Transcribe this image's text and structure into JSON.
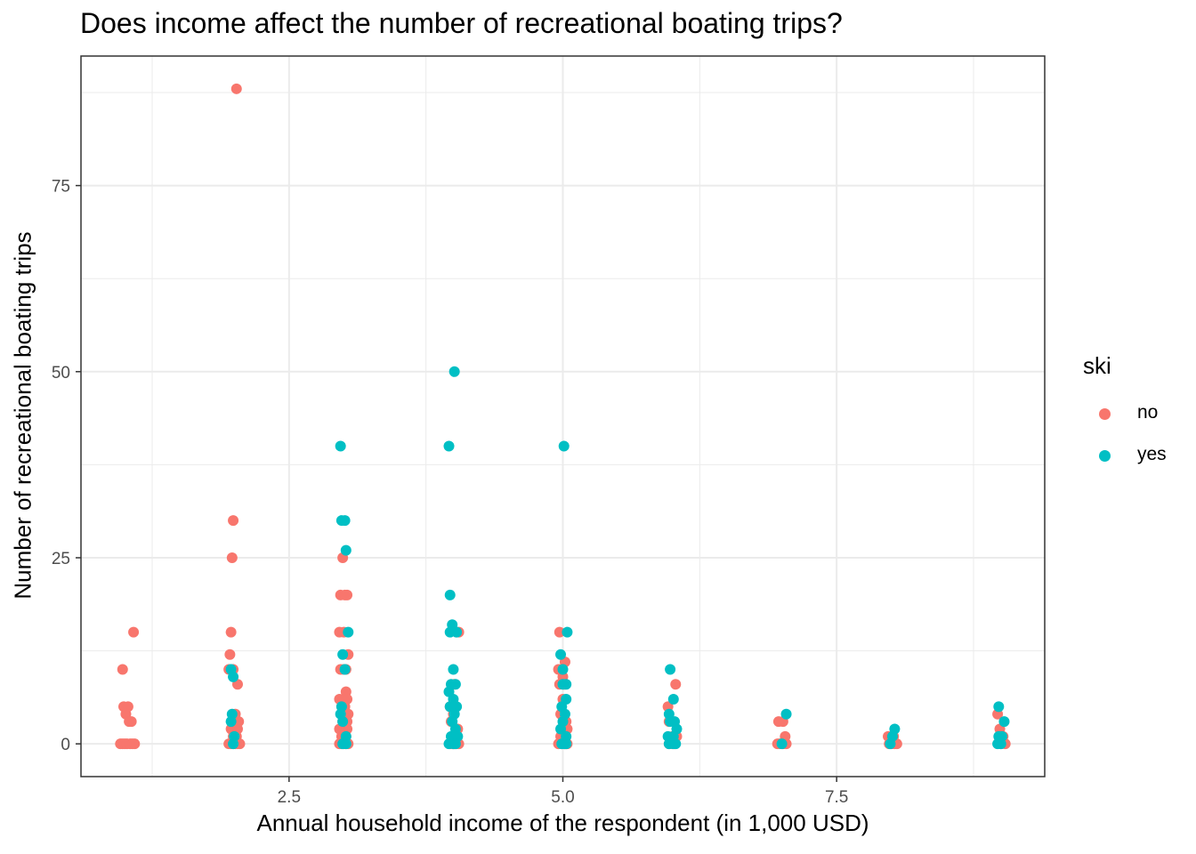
{
  "chart_data": {
    "type": "scatter",
    "title": "Does income affect the number of recreational boating trips?",
    "xlabel": "Annual household income of the respondent (in 1,000 USD)",
    "ylabel": "Number of recreational boating trips",
    "xlim": [
      0.6,
      9.4
    ],
    "ylim": [
      -4.4,
      92.4
    ],
    "x_ticks": [
      2.5,
      5.0,
      7.5
    ],
    "x_tick_labels": [
      "2.5",
      "5.0",
      "7.5"
    ],
    "y_ticks": [
      0,
      25,
      50,
      75
    ],
    "y_tick_labels": [
      "0",
      "25",
      "50",
      "75"
    ],
    "grid": true,
    "legend": {
      "title": "ski",
      "placement": "right",
      "entries": [
        {
          "label": "no",
          "color": "#F8766D"
        },
        {
          "label": "yes",
          "color": "#00BFC4"
        }
      ]
    },
    "series": [
      {
        "name": "no",
        "color": "#F8766D",
        "points": [
          [
            0.96,
            0
          ],
          [
            0.98,
            0
          ],
          [
            1.0,
            0
          ],
          [
            1.02,
            0
          ],
          [
            1.05,
            0
          ],
          [
            1.07,
            0
          ],
          [
            1.09,
            0
          ],
          [
            0.98,
            10
          ],
          [
            0.99,
            5
          ],
          [
            1.03,
            5
          ],
          [
            1.01,
            4
          ],
          [
            1.04,
            3
          ],
          [
            1.06,
            3
          ],
          [
            1.08,
            15
          ],
          [
            2.02,
            88
          ],
          [
            1.99,
            30
          ],
          [
            1.98,
            25
          ],
          [
            1.97,
            15
          ],
          [
            1.96,
            12
          ],
          [
            1.95,
            10
          ],
          [
            1.99,
            10
          ],
          [
            2.03,
            8
          ],
          [
            2.01,
            4
          ],
          [
            2.04,
            3
          ],
          [
            1.97,
            2
          ],
          [
            2.01,
            2
          ],
          [
            2.03,
            2
          ],
          [
            1.99,
            1
          ],
          [
            2.02,
            1
          ],
          [
            1.95,
            0
          ],
          [
            1.97,
            0
          ],
          [
            1.99,
            0
          ],
          [
            2.01,
            0
          ],
          [
            2.03,
            0
          ],
          [
            2.05,
            0
          ],
          [
            2.99,
            25
          ],
          [
            2.97,
            20
          ],
          [
            3.01,
            20
          ],
          [
            3.03,
            20
          ],
          [
            2.96,
            15
          ],
          [
            3.0,
            15
          ],
          [
            3.04,
            12
          ],
          [
            2.97,
            10
          ],
          [
            3.0,
            10
          ],
          [
            3.02,
            10
          ],
          [
            3.02,
            7
          ],
          [
            2.96,
            6
          ],
          [
            3.0,
            6
          ],
          [
            3.03,
            6
          ],
          [
            2.98,
            5
          ],
          [
            3.01,
            5
          ],
          [
            3.04,
            4
          ],
          [
            2.99,
            3
          ],
          [
            3.03,
            3
          ],
          [
            2.96,
            2
          ],
          [
            3.0,
            2
          ],
          [
            3.03,
            2
          ],
          [
            2.98,
            1
          ],
          [
            3.02,
            1
          ],
          [
            2.96,
            0
          ],
          [
            2.98,
            0
          ],
          [
            3.0,
            0
          ],
          [
            3.02,
            0
          ],
          [
            3.04,
            0
          ],
          [
            4.03,
            15
          ],
          [
            4.05,
            15
          ],
          [
            4.01,
            8
          ],
          [
            3.97,
            5
          ],
          [
            4.0,
            4
          ],
          [
            3.98,
            3
          ],
          [
            4.04,
            2
          ],
          [
            3.99,
            1
          ],
          [
            3.97,
            0
          ],
          [
            3.99,
            0
          ],
          [
            4.01,
            0
          ],
          [
            4.03,
            0
          ],
          [
            4.05,
            0
          ],
          [
            4.97,
            15
          ],
          [
            4.96,
            10
          ],
          [
            5.02,
            11
          ],
          [
            5.0,
            9
          ],
          [
            4.97,
            8
          ],
          [
            5.01,
            8
          ],
          [
            5.0,
            6
          ],
          [
            4.98,
            4
          ],
          [
            5.03,
            3
          ],
          [
            5.04,
            2
          ],
          [
            4.98,
            1
          ],
          [
            5.02,
            1
          ],
          [
            4.96,
            0
          ],
          [
            4.99,
            0
          ],
          [
            5.02,
            0
          ],
          [
            5.04,
            0
          ],
          [
            6.03,
            8
          ],
          [
            5.96,
            5
          ],
          [
            5.97,
            3
          ],
          [
            6.0,
            1
          ],
          [
            6.04,
            1
          ],
          [
            5.97,
            0
          ],
          [
            6.0,
            0
          ],
          [
            6.02,
            0
          ],
          [
            6.97,
            3
          ],
          [
            7.01,
            3
          ],
          [
            7.03,
            1
          ],
          [
            6.96,
            0
          ],
          [
            6.98,
            0
          ],
          [
            7.01,
            0
          ],
          [
            7.04,
            0
          ],
          [
            7.97,
            1
          ],
          [
            8.02,
            1
          ],
          [
            7.98,
            0
          ],
          [
            8.0,
            0
          ],
          [
            8.03,
            0
          ],
          [
            8.05,
            0
          ],
          [
            8.97,
            4
          ],
          [
            8.99,
            2
          ],
          [
            9.02,
            1
          ],
          [
            9.0,
            0
          ],
          [
            9.04,
            0
          ]
        ]
      },
      {
        "name": "yes",
        "color": "#00BFC4",
        "points": [
          [
            1.97,
            10
          ],
          [
            1.99,
            9
          ],
          [
            1.98,
            4
          ],
          [
            1.97,
            3
          ],
          [
            2.0,
            1
          ],
          [
            1.99,
            0
          ],
          [
            2.97,
            40
          ],
          [
            2.98,
            30
          ],
          [
            3.01,
            30
          ],
          [
            3.02,
            26
          ],
          [
            2.99,
            12
          ],
          [
            3.04,
            15
          ],
          [
            3.01,
            10
          ],
          [
            2.98,
            5
          ],
          [
            2.97,
            4
          ],
          [
            2.99,
            3
          ],
          [
            3.02,
            1
          ],
          [
            2.99,
            0
          ],
          [
            3.02,
            0
          ],
          [
            4.01,
            50
          ],
          [
            3.96,
            40
          ],
          [
            3.97,
            20
          ],
          [
            3.99,
            16
          ],
          [
            3.97,
            15
          ],
          [
            4.03,
            15
          ],
          [
            4.0,
            10
          ],
          [
            3.98,
            8
          ],
          [
            4.02,
            8
          ],
          [
            3.96,
            7
          ],
          [
            4.0,
            6
          ],
          [
            4.03,
            5
          ],
          [
            3.97,
            5
          ],
          [
            4.01,
            4
          ],
          [
            3.99,
            3
          ],
          [
            4.02,
            2
          ],
          [
            3.98,
            1
          ],
          [
            4.04,
            1
          ],
          [
            3.96,
            0
          ],
          [
            4.0,
            0
          ],
          [
            4.02,
            0
          ],
          [
            5.01,
            40
          ],
          [
            5.04,
            15
          ],
          [
            4.98,
            12
          ],
          [
            5.0,
            10
          ],
          [
            5.03,
            8
          ],
          [
            5.0,
            8
          ],
          [
            5.03,
            6
          ],
          [
            4.99,
            5
          ],
          [
            5.02,
            4
          ],
          [
            5.0,
            3
          ],
          [
            4.98,
            2
          ],
          [
            5.03,
            1
          ],
          [
            4.99,
            0
          ],
          [
            5.01,
            0
          ],
          [
            5.03,
            0
          ],
          [
            5.98,
            10
          ],
          [
            6.01,
            6
          ],
          [
            5.97,
            4
          ],
          [
            6.02,
            3
          ],
          [
            5.98,
            3
          ],
          [
            6.04,
            2
          ],
          [
            5.96,
            1
          ],
          [
            6.01,
            1
          ],
          [
            5.97,
            0
          ],
          [
            6.01,
            0
          ],
          [
            6.03,
            0
          ],
          [
            7.04,
            4
          ],
          [
            7.0,
            0
          ],
          [
            8.03,
            2
          ],
          [
            8.01,
            1
          ],
          [
            7.99,
            0
          ],
          [
            8.98,
            5
          ],
          [
            9.03,
            3
          ],
          [
            8.98,
            1
          ],
          [
            9.01,
            1
          ],
          [
            8.97,
            0
          ],
          [
            9.0,
            0
          ]
        ]
      }
    ]
  }
}
